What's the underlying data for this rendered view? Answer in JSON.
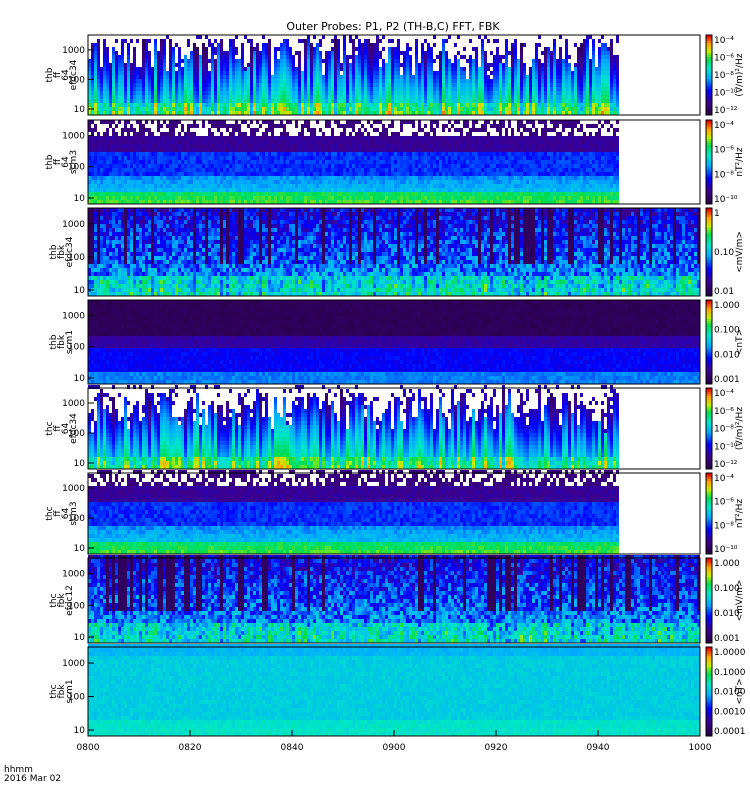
{
  "title": "Outer Probes: P1, P2 (TH-B,C) FFT, FBK",
  "footer": {
    "time_label": "hhmm",
    "date_label": "2016 Mar 02"
  },
  "x_axis": {
    "tick_labels": [
      "0800",
      "0820",
      "0840",
      "0900",
      "0920",
      "0940",
      "1000"
    ],
    "range_minutes": [
      0,
      120
    ]
  },
  "chart_data": [
    {
      "type": "heatmap",
      "panel": "thb ff 64 efdc34",
      "ylabel": [
        "thb",
        "ff",
        "64",
        "efdc34"
      ],
      "y_ticks": [
        "10",
        "100",
        "1000"
      ],
      "log_y": true,
      "colorbar_label": "(V/m)²/Hz",
      "colorbar_ticks": [
        "10⁻⁴",
        "10⁻⁶",
        "10⁻⁸",
        "10⁻¹⁰",
        "10⁻¹²"
      ],
      "data_end_minute": 104,
      "style": "spiky-blue"
    },
    {
      "type": "heatmap",
      "panel": "thb ff 64 scm3",
      "ylabel": [
        "thb",
        "ff",
        "64",
        "scm3"
      ],
      "y_ticks": [
        "10",
        "100",
        "1000"
      ],
      "log_y": true,
      "colorbar_label": "nT²/Hz",
      "colorbar_ticks": [
        "10⁻⁴",
        "10⁻⁶",
        "10⁻⁸",
        "10⁻¹⁰"
      ],
      "data_end_minute": 104,
      "style": "speckled-bands"
    },
    {
      "type": "heatmap",
      "panel": "thb fbk efdc34",
      "ylabel": [
        "thb",
        "fbk",
        "efdc34"
      ],
      "y_ticks": [
        "10",
        "100",
        "1000"
      ],
      "log_y": true,
      "colorbar_label": "<mV/m>",
      "colorbar_ticks": [
        "1",
        "0.10",
        "0.01"
      ],
      "data_end_minute": 120,
      "style": "striped-cyan"
    },
    {
      "type": "heatmap",
      "panel": "thb fbk scm1",
      "ylabel": [
        "thb",
        "fbk",
        "scm1"
      ],
      "y_ticks": [
        "10",
        "100",
        "1000"
      ],
      "log_y": true,
      "colorbar_label": "<nT>",
      "colorbar_ticks": [
        "1.000",
        "0.100",
        "0.010",
        "0.001"
      ],
      "data_end_minute": 120,
      "style": "dark-bands"
    },
    {
      "type": "heatmap",
      "panel": "thc ff 64 efdc34",
      "ylabel": [
        "thc",
        "ff",
        "64",
        "efdc34"
      ],
      "y_ticks": [
        "10",
        "100",
        "1000"
      ],
      "log_y": true,
      "colorbar_label": "(V/m)²/Hz",
      "colorbar_ticks": [
        "10⁻⁴",
        "10⁻⁶",
        "10⁻⁸",
        "10⁻¹⁰",
        "10⁻¹²"
      ],
      "data_end_minute": 104,
      "style": "spiky-blue"
    },
    {
      "type": "heatmap",
      "panel": "thc ff 64 scm3",
      "ylabel": [
        "thc",
        "ff",
        "64",
        "scm3"
      ],
      "y_ticks": [
        "10",
        "100",
        "1000"
      ],
      "log_y": true,
      "colorbar_label": "nT²/Hz",
      "colorbar_ticks": [
        "10⁻⁴",
        "10⁻⁶",
        "10⁻⁸",
        "10⁻¹⁰"
      ],
      "data_end_minute": 104,
      "style": "speckled-bands"
    },
    {
      "type": "heatmap",
      "panel": "thc fbk efdc12",
      "ylabel": [
        "thc",
        "fbk",
        "efdc12"
      ],
      "y_ticks": [
        "10",
        "100",
        "1000"
      ],
      "log_y": true,
      "colorbar_label": "<mV/m>",
      "colorbar_ticks": [
        "1.000",
        "0.100",
        "0.010",
        "0.001"
      ],
      "data_end_minute": 120,
      "style": "striped-cyan"
    },
    {
      "type": "heatmap",
      "panel": "thc fbk scm1",
      "ylabel": [
        "thc",
        "fbk",
        "scm1"
      ],
      "y_ticks": [
        "10",
        "100",
        "1000"
      ],
      "log_y": true,
      "colorbar_label": "<nT>",
      "colorbar_ticks": [
        "1.0000",
        "0.1000",
        "0.0100",
        "0.0010",
        "0.0001"
      ],
      "data_end_minute": 120,
      "style": "teal-bands"
    }
  ]
}
